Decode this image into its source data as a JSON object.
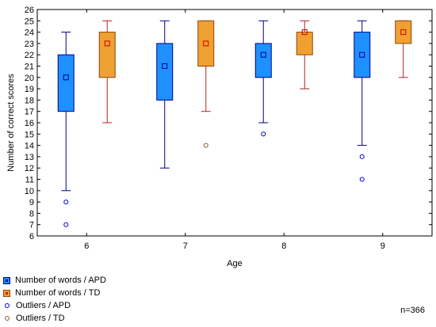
{
  "chart_data": {
    "type": "box",
    "xlabel": "Age",
    "ylabel": "Number of correct scores",
    "ylim": [
      6,
      26
    ],
    "yticks": [
      6,
      7,
      8,
      9,
      10,
      11,
      12,
      13,
      14,
      15,
      16,
      17,
      18,
      19,
      20,
      21,
      22,
      23,
      24,
      25,
      26
    ],
    "categories": [
      "6",
      "7",
      "8",
      "9"
    ],
    "series": [
      {
        "name": "Number of words / APD",
        "color": "#1e90ff",
        "edge": "#00008b",
        "boxes": [
          {
            "category": "6",
            "whisker_low": 10,
            "q1": 17,
            "median": 20,
            "q3": 22,
            "whisker_high": 24,
            "outliers": [
              9,
              7
            ]
          },
          {
            "category": "7",
            "whisker_low": 12,
            "q1": 18,
            "median": 21,
            "q3": 23,
            "whisker_high": 25,
            "outliers": []
          },
          {
            "category": "8",
            "whisker_low": 16,
            "q1": 20,
            "median": 22,
            "q3": 23,
            "whisker_high": 25,
            "outliers": [
              15
            ]
          },
          {
            "category": "9",
            "whisker_low": 14,
            "q1": 20,
            "median": 22,
            "q3": 24,
            "whisker_high": 25,
            "outliers": [
              13,
              11
            ]
          }
        ]
      },
      {
        "name": "Number of words / TD",
        "color": "#f0a030",
        "edge": "#8b4513",
        "boxes": [
          {
            "category": "6",
            "whisker_low": 16,
            "q1": 20,
            "median": 23,
            "q3": 24,
            "whisker_high": 25,
            "outliers": []
          },
          {
            "category": "7",
            "whisker_low": 17,
            "q1": 21,
            "median": 23,
            "q3": 25,
            "whisker_high": 25,
            "outliers": [
              14
            ]
          },
          {
            "category": "8",
            "whisker_low": 19,
            "q1": 22,
            "median": 24,
            "q3": 24,
            "whisker_high": 25,
            "outliers": []
          },
          {
            "category": "9",
            "whisker_low": 20,
            "q1": 23,
            "median": 24,
            "q3": 25,
            "whisker_high": 25,
            "outliers": []
          }
        ]
      }
    ],
    "legend": {
      "position": "bottom-left",
      "entries": [
        {
          "label": "Number of words / APD",
          "marker": "box-apd"
        },
        {
          "label": "Number of words / TD",
          "marker": "box-td"
        },
        {
          "label": "Outliers / APD",
          "marker": "outlier-apd"
        },
        {
          "label": "Outliers / TD",
          "marker": "outlier-td"
        }
      ]
    },
    "annotation": "n=366",
    "grid": false
  }
}
